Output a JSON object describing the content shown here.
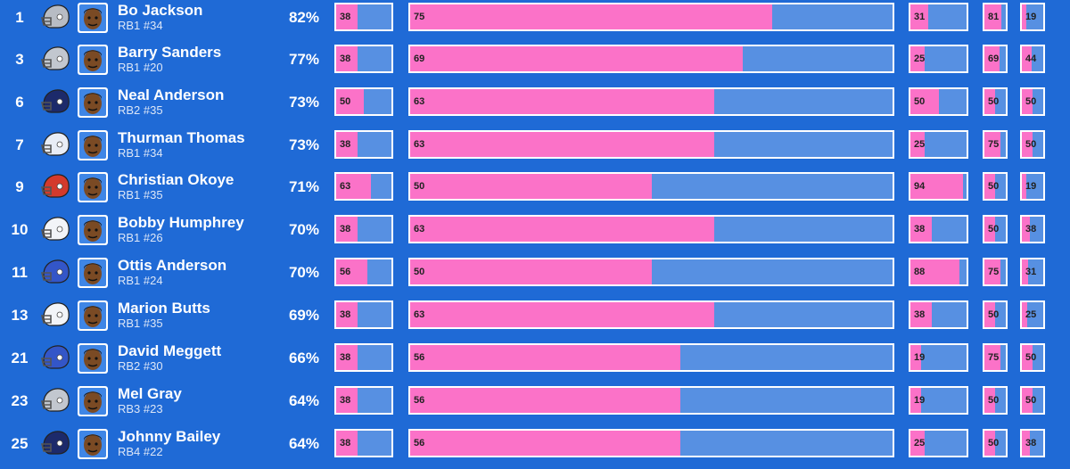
{
  "colors": {
    "background": "#1f6ad6",
    "bar_fill": "#fb72c8",
    "bar_empty": "#5790e2",
    "bar_border": "#ffffff"
  },
  "players": [
    {
      "rank": "1",
      "name": "Bo Jackson",
      "position": "RB1 #34",
      "pct": "82%",
      "team_icon": "raiders-helmet-icon",
      "helmet_color": "#b7bcc4",
      "stats": [
        38,
        75,
        31,
        81,
        19
      ]
    },
    {
      "rank": "3",
      "name": "Barry Sanders",
      "position": "RB1 #20",
      "pct": "77%",
      "team_icon": "lions-helmet-icon",
      "helmet_color": "#c2c7cf",
      "stats": [
        38,
        69,
        25,
        69,
        44
      ]
    },
    {
      "rank": "6",
      "name": "Neal Anderson",
      "position": "RB2 #35",
      "pct": "73%",
      "team_icon": "bears-helmet-icon",
      "helmet_color": "#1c2a6b",
      "stats": [
        50,
        63,
        50,
        50,
        50
      ]
    },
    {
      "rank": "7",
      "name": "Thurman Thomas",
      "position": "RB1 #34",
      "pct": "73%",
      "team_icon": "bills-helmet-icon",
      "helmet_color": "#e8edf6",
      "stats": [
        38,
        63,
        25,
        75,
        50
      ]
    },
    {
      "rank": "9",
      "name": "Christian Okoye",
      "position": "RB1 #35",
      "pct": "71%",
      "team_icon": "chiefs-helmet-icon",
      "helmet_color": "#d33a2c",
      "stats": [
        63,
        50,
        94,
        50,
        19
      ]
    },
    {
      "rank": "10",
      "name": "Bobby Humphrey",
      "position": "RB1 #26",
      "pct": "70%",
      "team_icon": "broncos-helmet-icon",
      "helmet_color": "#f2f4f8",
      "stats": [
        38,
        63,
        38,
        50,
        38
      ]
    },
    {
      "rank": "11",
      "name": "Ottis Anderson",
      "position": "RB1 #24",
      "pct": "70%",
      "team_icon": "giants-helmet-icon",
      "helmet_color": "#3356c8",
      "stats": [
        56,
        50,
        88,
        75,
        31
      ]
    },
    {
      "rank": "13",
      "name": "Marion Butts",
      "position": "RB1 #35",
      "pct": "69%",
      "team_icon": "chargers-helmet-icon",
      "helmet_color": "#f2f4f8",
      "stats": [
        38,
        63,
        38,
        50,
        25
      ]
    },
    {
      "rank": "21",
      "name": "David Meggett",
      "position": "RB2 #30",
      "pct": "66%",
      "team_icon": "giants-helmet-icon",
      "helmet_color": "#3356c8",
      "stats": [
        38,
        56,
        19,
        75,
        50
      ]
    },
    {
      "rank": "23",
      "name": "Mel Gray",
      "position": "RB3 #23",
      "pct": "64%",
      "team_icon": "lions-helmet-icon",
      "helmet_color": "#c2c7cf",
      "stats": [
        38,
        56,
        19,
        50,
        50
      ]
    },
    {
      "rank": "25",
      "name": "Johnny Bailey",
      "position": "RB4 #22",
      "pct": "64%",
      "team_icon": "bears-helmet-icon",
      "helmet_color": "#1c2a6b",
      "stats": [
        38,
        56,
        25,
        50,
        38
      ]
    }
  ]
}
